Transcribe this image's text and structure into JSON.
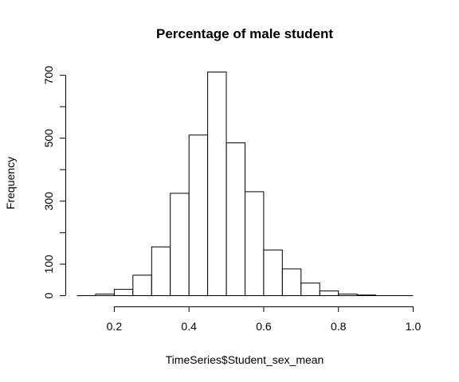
{
  "chart_data": {
    "type": "bar",
    "title": "Percentage of male student",
    "xlabel": "TimeSeries$Student_sex_mean",
    "ylabel": "Frequency",
    "bin_edges": [
      0.1,
      0.15,
      0.2,
      0.25,
      0.3,
      0.35,
      0.4,
      0.45,
      0.5,
      0.55,
      0.6,
      0.65,
      0.7,
      0.75,
      0.8,
      0.85,
      0.9,
      0.95,
      1.0
    ],
    "values": [
      0,
      5,
      20,
      65,
      155,
      325,
      510,
      710,
      485,
      330,
      145,
      85,
      40,
      15,
      5,
      2,
      0,
      0
    ],
    "xlim": [
      0.1,
      1.0
    ],
    "ylim": [
      0,
      710
    ],
    "x_ticks": [
      0.2,
      0.4,
      0.6,
      0.8,
      1.0
    ],
    "x_tick_labels": [
      "0.2",
      "0.4",
      "0.6",
      "0.8",
      "1.0"
    ],
    "y_ticks": [
      0,
      100,
      200,
      300,
      400,
      500,
      600,
      700
    ],
    "y_tick_labels": [
      "0",
      "100",
      "",
      "300",
      "",
      "500",
      "",
      "700"
    ],
    "grid": false,
    "colors": {
      "bar_fill": "#ffffff",
      "bar_stroke": "#000000"
    }
  }
}
